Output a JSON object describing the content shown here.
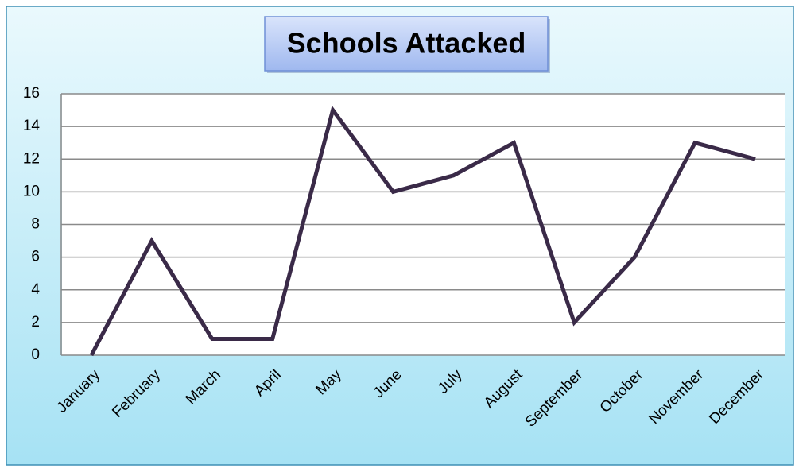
{
  "chart_data": {
    "type": "line",
    "title": "Schools Attacked",
    "categories": [
      "January",
      "February",
      "March",
      "April",
      "May",
      "June",
      "July",
      "August",
      "September",
      "October",
      "November",
      "December"
    ],
    "series": [
      {
        "name": "Schools Attacked",
        "color": "#3a2a48",
        "values": [
          0,
          7,
          1,
          1,
          15,
          10,
          11,
          13,
          2,
          6,
          13,
          12
        ]
      }
    ],
    "ylim": [
      0,
      16
    ],
    "yticks": [
      0,
      2,
      4,
      6,
      8,
      10,
      12,
      14,
      16
    ],
    "grid": true
  }
}
